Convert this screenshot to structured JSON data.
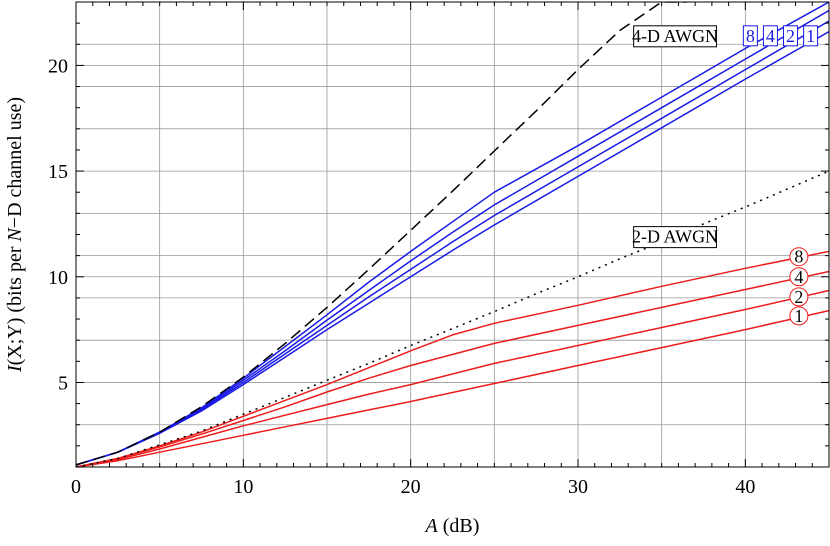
{
  "chart_data": {
    "type": "line",
    "xlabel_italic": "A",
    "xlabel_rest": " (dB)",
    "ylabel_parts": [
      {
        "t": "I",
        "italic": true
      },
      {
        "t": "(X;Y) (bits per ",
        "italic": false
      },
      {
        "t": "N",
        "italic": true
      },
      {
        "t": "−D channel use)",
        "italic": false
      }
    ],
    "xlim": [
      0,
      45
    ],
    "ylim": [
      1,
      23
    ],
    "x_ticks": [
      0,
      10,
      20,
      30,
      40
    ],
    "x_tick_labels": [
      "0",
      "10",
      "20",
      "30",
      "40"
    ],
    "y_ticks": [
      5,
      10,
      15,
      20
    ],
    "y_tick_labels": [
      "5",
      "10",
      "15",
      "20"
    ],
    "grid": true,
    "grid_x": [
      5,
      10,
      15,
      20,
      25,
      30,
      35,
      40,
      45
    ],
    "grid_y": [
      3,
      5,
      7,
      9,
      10,
      11,
      13,
      15,
      17,
      19,
      20,
      21,
      23
    ],
    "colors": {
      "blue": "#1a1ae6",
      "red": "#ee1c1c",
      "black": "#000000",
      "grid": "#999999"
    },
    "series": [
      {
        "label": "4-D AWGN",
        "color": "black",
        "dash": "long",
        "x": [
          0,
          2.5,
          5,
          7.5,
          10,
          12.5,
          15,
          17.5,
          20,
          22.5,
          25,
          27.5,
          30,
          32.5,
          35,
          36.5
        ],
        "y": [
          1.1,
          1.7,
          2.65,
          3.85,
          5.25,
          6.85,
          8.55,
          10.35,
          12.2,
          14.05,
          15.95,
          17.85,
          19.8,
          21.65,
          23.0,
          23.0
        ]
      },
      {
        "label": "2-D AWGN",
        "color": "black",
        "dash": "dot",
        "x": [
          0,
          2.5,
          5,
          7.5,
          10,
          12.5,
          15,
          17.5,
          20,
          22.5,
          25,
          27.5,
          30,
          32.5,
          35,
          37.5,
          40,
          42.5,
          45
        ],
        "y": [
          1.0,
          1.4,
          2.05,
          2.7,
          3.5,
          4.3,
          5.1,
          5.9,
          6.75,
          7.55,
          8.35,
          9.2,
          10.0,
          10.85,
          11.65,
          12.5,
          13.3,
          14.15,
          15.0
        ]
      },
      {
        "label": "8",
        "group": "4-D",
        "color": "blue",
        "x": [
          0,
          2.5,
          5,
          7.5,
          10,
          12.5,
          15,
          17.5,
          20,
          22.5,
          25,
          30,
          35,
          40,
          45
        ],
        "y": [
          1.1,
          1.7,
          2.65,
          3.8,
          5.2,
          6.7,
          8.2,
          9.75,
          11.2,
          12.6,
          14.0,
          16.2,
          18.5,
          20.8,
          23.0
        ]
      },
      {
        "label": "4",
        "group": "4-D",
        "color": "blue",
        "x": [
          0,
          2.5,
          5,
          7.5,
          10,
          12.5,
          15,
          17.5,
          20,
          22.5,
          25,
          30,
          35,
          40,
          45
        ],
        "y": [
          1.1,
          1.7,
          2.65,
          3.75,
          5.1,
          6.5,
          7.95,
          9.35,
          10.75,
          12.1,
          13.4,
          15.7,
          18.0,
          20.3,
          22.6
        ]
      },
      {
        "label": "2",
        "group": "4-D",
        "color": "blue",
        "x": [
          0,
          2.5,
          5,
          7.5,
          10,
          12.5,
          15,
          17.5,
          20,
          22.5,
          25,
          30,
          35,
          40,
          45
        ],
        "y": [
          1.1,
          1.7,
          2.6,
          3.7,
          5.0,
          6.35,
          7.7,
          9.05,
          10.35,
          11.65,
          12.9,
          15.2,
          17.5,
          19.8,
          22.1
        ]
      },
      {
        "label": "1",
        "group": "4-D",
        "color": "blue",
        "x": [
          0,
          2.5,
          5,
          7.5,
          10,
          12.5,
          15,
          17.5,
          20,
          22.5,
          25,
          30,
          35,
          40,
          45
        ],
        "y": [
          1.1,
          1.7,
          2.6,
          3.65,
          4.9,
          6.2,
          7.5,
          8.75,
          10.0,
          11.25,
          12.45,
          14.75,
          17.05,
          19.35,
          21.6
        ]
      },
      {
        "label": "8",
        "group": "2-D",
        "color": "red",
        "x": [
          0,
          2.5,
          5,
          7.5,
          10,
          12.5,
          15,
          17.5,
          20,
          22.5,
          25,
          30,
          35,
          40,
          45
        ],
        "y": [
          1.0,
          1.4,
          2.0,
          2.65,
          3.4,
          4.15,
          4.9,
          5.7,
          6.5,
          7.25,
          7.8,
          8.65,
          9.55,
          10.4,
          11.2
        ]
      },
      {
        "label": "4",
        "group": "2-D",
        "color": "red",
        "x": [
          0,
          2.5,
          5,
          7.5,
          10,
          12.5,
          15,
          17.5,
          20,
          25,
          30,
          35,
          40,
          45
        ],
        "y": [
          1.0,
          1.4,
          1.95,
          2.55,
          3.2,
          3.85,
          4.55,
          5.2,
          5.8,
          6.85,
          7.7,
          8.55,
          9.4,
          10.25
        ]
      },
      {
        "label": "2",
        "group": "2-D",
        "color": "red",
        "x": [
          0,
          2.5,
          5,
          7.5,
          10,
          12.5,
          15,
          17.5,
          20,
          25,
          30,
          35,
          40,
          45
        ],
        "y": [
          1.0,
          1.35,
          1.85,
          2.4,
          2.95,
          3.45,
          3.95,
          4.45,
          4.9,
          5.9,
          6.75,
          7.6,
          8.45,
          9.35
        ]
      },
      {
        "label": "1",
        "group": "2-D",
        "color": "red",
        "x": [
          0,
          2.5,
          5,
          7.5,
          10,
          12.5,
          15,
          17.5,
          20,
          25,
          30,
          35,
          40,
          45
        ],
        "y": [
          1.0,
          1.3,
          1.7,
          2.1,
          2.5,
          2.9,
          3.3,
          3.7,
          4.1,
          4.95,
          5.8,
          6.65,
          7.5,
          8.4
        ]
      }
    ],
    "annotations": {
      "awgn4": {
        "text": "4-D AWGN",
        "x": 35.8,
        "y": 21.4
      },
      "awgn2": {
        "text": "2-D AWGN",
        "x": 35.8,
        "y": 11.9
      },
      "blue_labels": {
        "y": 21.4,
        "items": [
          {
            "text": "8",
            "x": 40.3
          },
          {
            "text": "4",
            "x": 41.5
          },
          {
            "text": "2",
            "x": 42.7
          },
          {
            "text": "1",
            "x": 43.9
          }
        ]
      },
      "red_labels": {
        "x": 43.2,
        "items": [
          {
            "text": "8",
            "y": 10.95
          },
          {
            "text": "4",
            "y": 10.0
          },
          {
            "text": "2",
            "y": 9.05
          },
          {
            "text": "1",
            "y": 8.15
          }
        ]
      }
    }
  }
}
